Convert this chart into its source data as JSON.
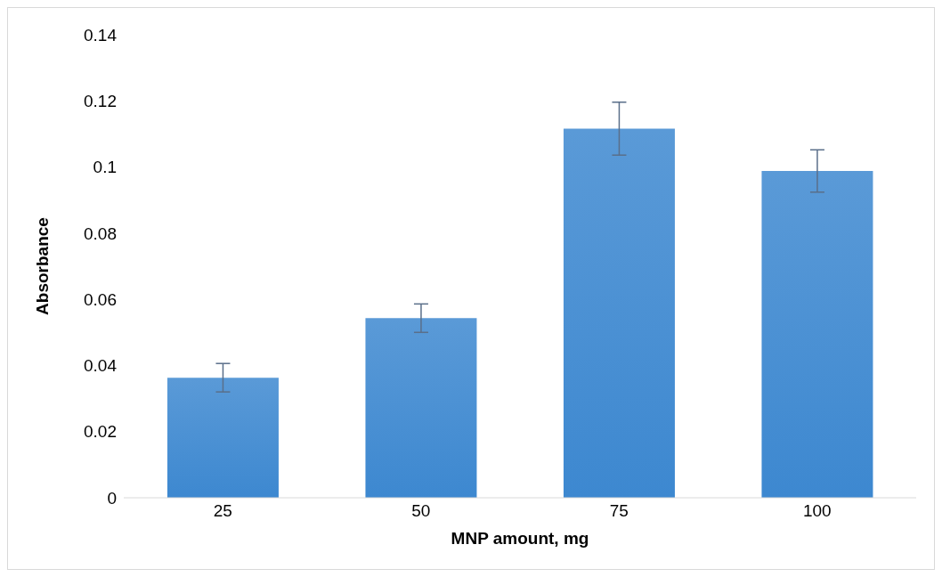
{
  "chart_data": {
    "type": "bar",
    "xlabel": "MNP amount, mg",
    "ylabel": "Absorbance",
    "categories": [
      "25",
      "50",
      "75",
      "100"
    ],
    "values": [
      0.0363,
      0.0543,
      0.1116,
      0.0988
    ],
    "errors": [
      0.0043,
      0.0043,
      0.008,
      0.0064
    ],
    "color": "#3d88d0",
    "ylim": [
      0,
      0.14
    ],
    "yticks": [
      0,
      0.02,
      0.04,
      0.06,
      0.08,
      0.1,
      0.12,
      0.14
    ],
    "grid": false,
    "legend": false
  }
}
